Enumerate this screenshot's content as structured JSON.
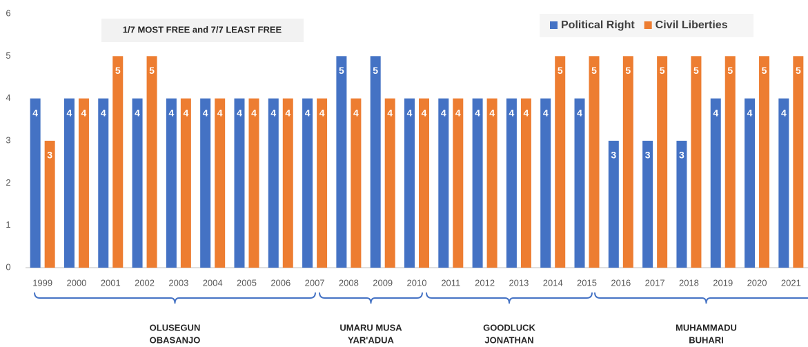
{
  "chart_data": {
    "type": "bar",
    "annotation": "1/7 MOST FREE and 7/7 LEAST FREE",
    "categories": [
      "1999",
      "2000",
      "2001",
      "2002",
      "2003",
      "2004",
      "2005",
      "2006",
      "2007",
      "2008",
      "2009",
      "2010",
      "2011",
      "2012",
      "2013",
      "2014",
      "2015",
      "2016",
      "2017",
      "2018",
      "2019",
      "2020",
      "2021"
    ],
    "series": [
      {
        "name": "Political Right",
        "color": "#4472c4",
        "values": [
          4,
          4,
          4,
          4,
          4,
          4,
          4,
          4,
          4,
          5,
          5,
          4,
          4,
          4,
          4,
          4,
          4,
          3,
          3,
          3,
          4,
          4,
          4
        ]
      },
      {
        "name": "Civil Liberties",
        "color": "#ed7d31",
        "values": [
          3,
          4,
          5,
          5,
          4,
          4,
          4,
          4,
          4,
          4,
          4,
          4,
          4,
          4,
          4,
          5,
          5,
          5,
          5,
          5,
          5,
          5,
          5
        ]
      }
    ],
    "ylim": [
      0,
      6
    ],
    "yticks": [
      0,
      1,
      2,
      3,
      4,
      5,
      6
    ],
    "grid": false,
    "legend": "top-right",
    "data_labels": true,
    "presidents": [
      {
        "lines": [
          "OLUSEGUN",
          "OBASANJO"
        ]
      },
      {
        "lines": [
          "UMARU MUSA",
          "YAR'ADUA"
        ]
      },
      {
        "lines": [
          "GOODLUCK",
          "JONATHAN"
        ]
      },
      {
        "lines": [
          "MUHAMMADU",
          "BUHARI"
        ]
      }
    ]
  }
}
